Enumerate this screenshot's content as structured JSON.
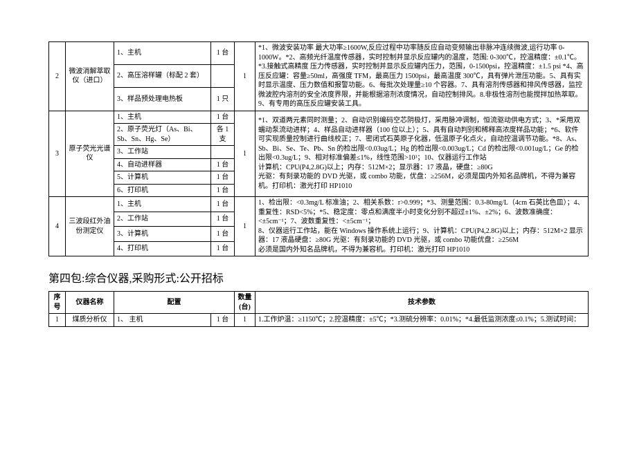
{
  "table1": {
    "rows": [
      {
        "idx": "2",
        "name": "微波消解萃取仪（进口）",
        "configs": [
          {
            "label": "1、主机",
            "unit": "1 台"
          },
          {
            "label": "2、高压溶样罐（标配 2 套）",
            "unit": ""
          },
          {
            "label": "3、样品预处理电热板",
            "unit": "1 只"
          }
        ],
        "qty": "1",
        "spec": "*1、微波安装功率 最大功率≥1600W,反应过程中功率随反应自动变频输出非脉冲连续微波,运行功率 0-1000W。*2、高频光纤温度传感器，实时控制并显示反应罐内的温度，范围: 0-300℃，控温精度：±0.1℃。*3.接触式高精度 压力传感器，实时控制并显示反应罐内压力，范围，0-1500psi，控温精度：±1.5 psi *4、高压反应罐：容量≥50ml，高强度 TFM，最高压力 1500psi，最高温度 300℃，具有弹片泄压功能。5、具有实时显示温度、压力数值和报警功能。6、每批次处理量≥10 个容器。7、具有溶剂传感器和排风传感器，监控微波腔内溶剂的安全浓度界限，并能根据溶剂浓度情况，自动控制排风。8.非极性溶剂也能搅拌加热萃取。9、有专用的高压反应罐安装工具。"
      },
      {
        "idx": "3",
        "name": "原子荧光光谱仪",
        "configs": [
          {
            "label": "1、主机",
            "unit": "1 台"
          },
          {
            "label": "2、原子荧光灯（As、Bi、Sb、Sn、Hg、Se）",
            "unit": "各 1 支"
          },
          {
            "label": "3、工作站",
            "unit": ""
          },
          {
            "label": "4、自动进样器",
            "unit": "1 台"
          },
          {
            "label": "5、计算机",
            "unit": "1 台"
          },
          {
            "label": "6、打印机",
            "unit": "1 台"
          }
        ],
        "qty": "1",
        "spec": "*1、双道两元素同时测量；2、自动识别编码空芯阴极灯，采用脉冲调制，恒流驱动供电方式；3、*采用双蠕动泵流动进样；4、样品自动进样器（100 位以上）；5、具有自动判别和稀释高浓度样品功能；*6、软件可实现质量控制进行曲线校正；7、密闭式石英原子化器，低温原子化点火，自动控温调节功能。*8、As、Sb、Bi、Se、Te、Pb、Sn 的检出限<0.03ug/L；Hg 的检出限<0.003ug/L；Cd 的检出限<0.001ug/L；Ge 的检出限<0.3ug/L；9、相对标准偏差≤1%，线性范围>10³；10、仪器运行工作站\n计算机：CPU(P4,2.8G)以上；内存：512M×2；显示器：17 液晶，硬盘：≥80G\n光驱：有刻录功能的 DVD 光驱，或 combo 功能，优盘：≥256M，必须是国内外知名品牌机，不得为兼容机。打印机：激光打印 HP1010"
      },
      {
        "idx": "4",
        "name": "三波段红外油份测定仪",
        "configs": [
          {
            "label": "1、主机",
            "unit": "1 台"
          },
          {
            "label": "2、工作站",
            "unit": "1 台"
          },
          {
            "label": "3、计算机",
            "unit": "1 台"
          },
          {
            "label": "4、打印机",
            "unit": "1 台"
          }
        ],
        "qty": "1",
        "spec": "1、检出限：<0.3mg/L 标准油；2、相关系数：r>0.999；*3、测量范围：0.3-80mg/L（4cm 石英比色皿）；4、重复性：RSD<5%；*5、稳定度：零点和满度半小时变化分别不超过±1%、±2%；6、波数准确度：<±5cm⁻¹；7、波数重复性：<±5cm⁻¹；\n8、仪器运行工作站，能在 Windows 操作系统上运行；9、计算机：CPU(P4,2.8G)以上；内存：512M×2 显示器：17 液晶硬盘：≥80G 光驱：有刻录功能的 DVD 光驱，或 combo 功能优盘：≥256M\n必须是国内外知名品牌机，不得为兼容机。打印机：激光打印 HP1010"
      }
    ]
  },
  "section_title": "第四包:综合仪器,采购形式:公开招标",
  "table2": {
    "headers": {
      "idx": "序号",
      "name": "仪器名称",
      "cfg": "配置",
      "qty": "数量(台)",
      "spec": "技术参数"
    },
    "rows": [
      {
        "idx": "1",
        "name": "煤质分析仪",
        "cfg": "1、 主机",
        "unit": "1 台",
        "qty": "1",
        "spec": "1.工作炉温：≥1150℃；2.控温精度：±5℃；*3.测硫分辨率：0.01%；*4.最低监测浓度≤0.1%；5.测试时间："
      }
    ]
  }
}
